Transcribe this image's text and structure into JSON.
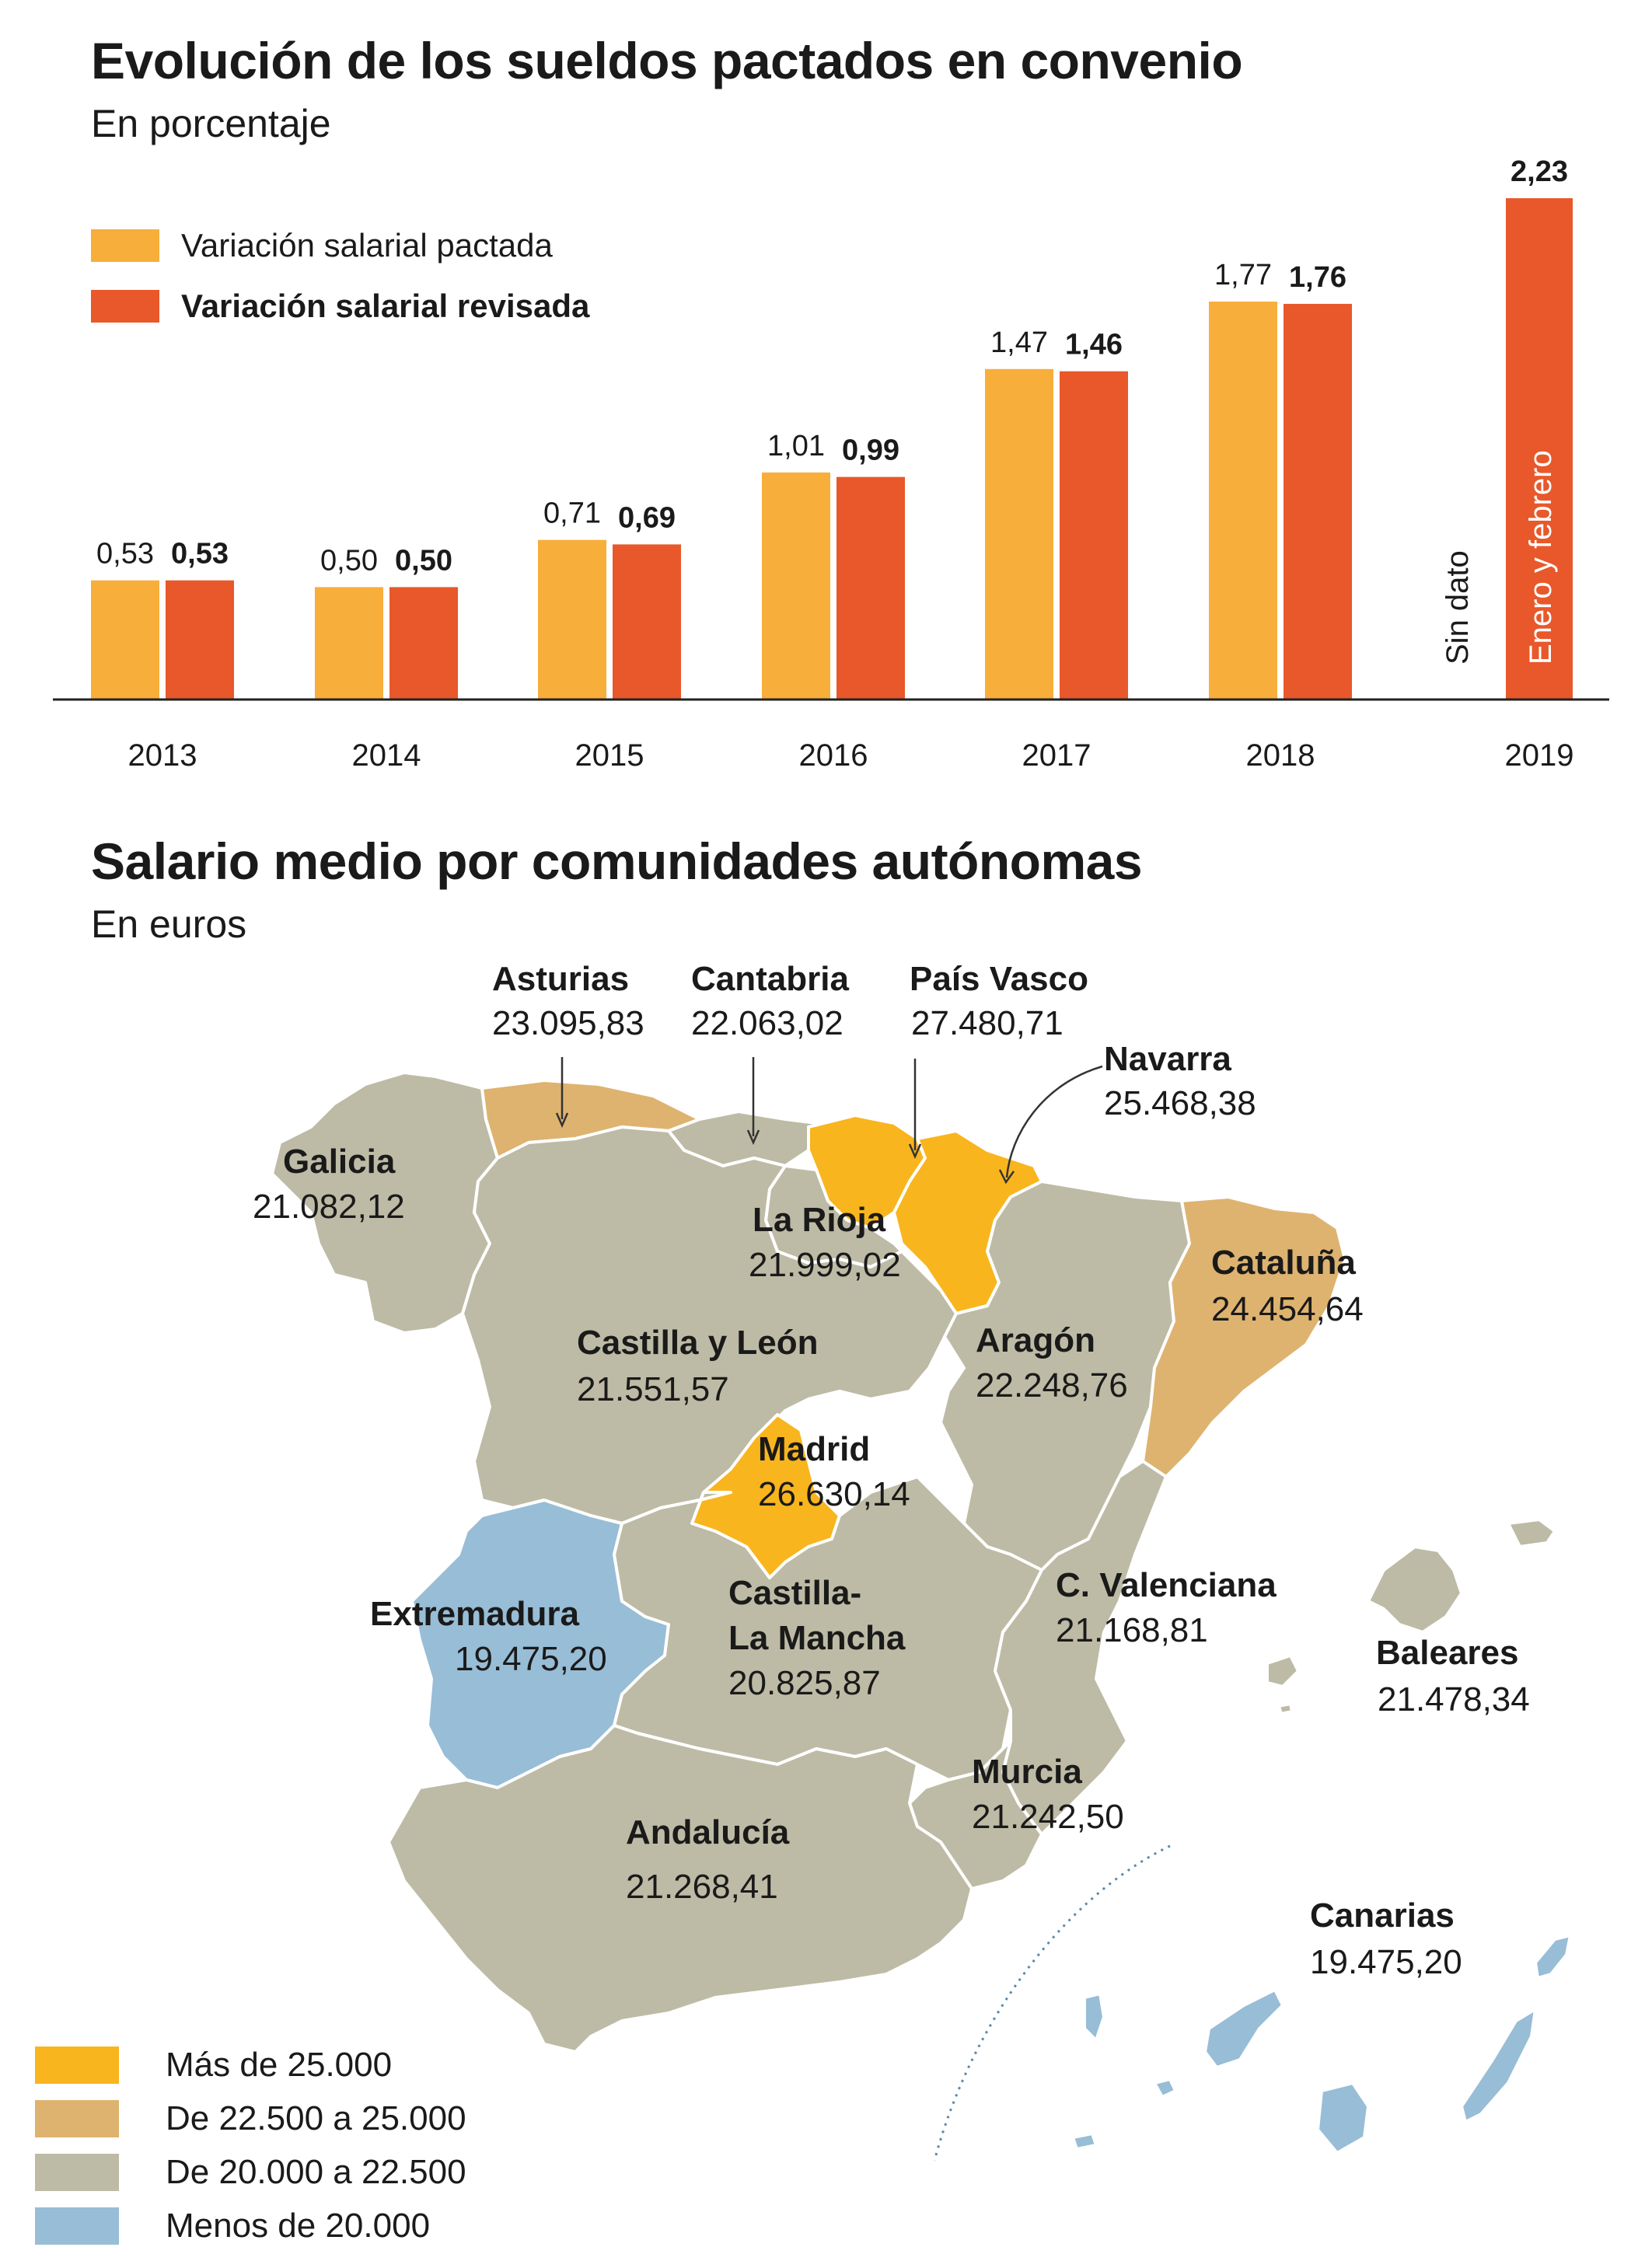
{
  "chart": {
    "title": "Evolución de los sueldos pactados en convenio",
    "subtitle": "En porcentaje",
    "legend": [
      {
        "label": "Variación salarial pactada",
        "color": "#f8ae3b",
        "bold": false
      },
      {
        "label": "Variación salarial revisada",
        "color": "#e8582a",
        "bold": true
      }
    ],
    "no_data_label": "Sin dato",
    "note_2019": "Enero y febrero"
  },
  "chart_data": {
    "type": "bar",
    "categories": [
      "2013",
      "2014",
      "2015",
      "2016",
      "2017",
      "2018",
      "2019"
    ],
    "series": [
      {
        "name": "Variación salarial pactada",
        "values": [
          0.53,
          0.5,
          0.71,
          1.01,
          1.47,
          1.77,
          null
        ],
        "labels": [
          "0,53",
          "0,50",
          "0,71",
          "1,01",
          "1,47",
          "1,77",
          ""
        ]
      },
      {
        "name": "Variación salarial revisada",
        "values": [
          0.53,
          0.5,
          0.69,
          0.99,
          1.46,
          1.76,
          2.23
        ],
        "labels": [
          "0,53",
          "0,50",
          "0,69",
          "0,99",
          "1,46",
          "1,76",
          "2,23"
        ]
      }
    ],
    "ylim": [
      0,
      2.23
    ]
  },
  "map": {
    "title": "Salario medio por comunidades autónomas",
    "subtitle": "En euros",
    "colors": {
      "mas25": "#f9b51e",
      "de22a25": "#deb36f",
      "de20a22": "#bdbba5",
      "menos20": "#98bdd6"
    },
    "legend": [
      {
        "label": "Más de 25.000",
        "color": "#f9b51e"
      },
      {
        "label": "De 22.500 a 25.000",
        "color": "#deb36f"
      },
      {
        "label": "De 20.000 a 22.500",
        "color": "#bdbba5"
      },
      {
        "label": "Menos de 20.000",
        "color": "#98bdd6"
      }
    ],
    "regions": {
      "asturias": {
        "name": "Asturias",
        "value": "23.095,83"
      },
      "cantabria": {
        "name": "Cantabria",
        "value": "22.063,02"
      },
      "pais_vasco": {
        "name": "País Vasco",
        "value": "27.480,71"
      },
      "navarra": {
        "name": "Navarra",
        "value": "25.468,38"
      },
      "galicia": {
        "name": "Galicia",
        "value": "21.082,12"
      },
      "la_rioja": {
        "name": "La Rioja",
        "value": "21.999,02"
      },
      "cataluna": {
        "name": "Cataluña",
        "value": "24.454,64"
      },
      "castilla_leon": {
        "name": "Castilla y León",
        "value": "21.551,57"
      },
      "aragon": {
        "name": "Aragón",
        "value": "22.248,76"
      },
      "madrid": {
        "name": "Madrid",
        "value": "26.630,14"
      },
      "extremadura": {
        "name": "Extremadura",
        "value": "19.475,20"
      },
      "castilla_mancha": {
        "name_line1": "Castilla-",
        "name_line2": "La Mancha",
        "value": "20.825,87"
      },
      "c_valenciana": {
        "name": "C. Valenciana",
        "value": "21.168,81"
      },
      "baleares": {
        "name": "Baleares",
        "value": "21.478,34"
      },
      "murcia": {
        "name": "Murcia",
        "value": "21.242,50"
      },
      "andalucia": {
        "name": "Andalucía",
        "value": "21.268,41"
      },
      "canarias": {
        "name": "Canarias",
        "value": "19.475,20"
      }
    }
  }
}
